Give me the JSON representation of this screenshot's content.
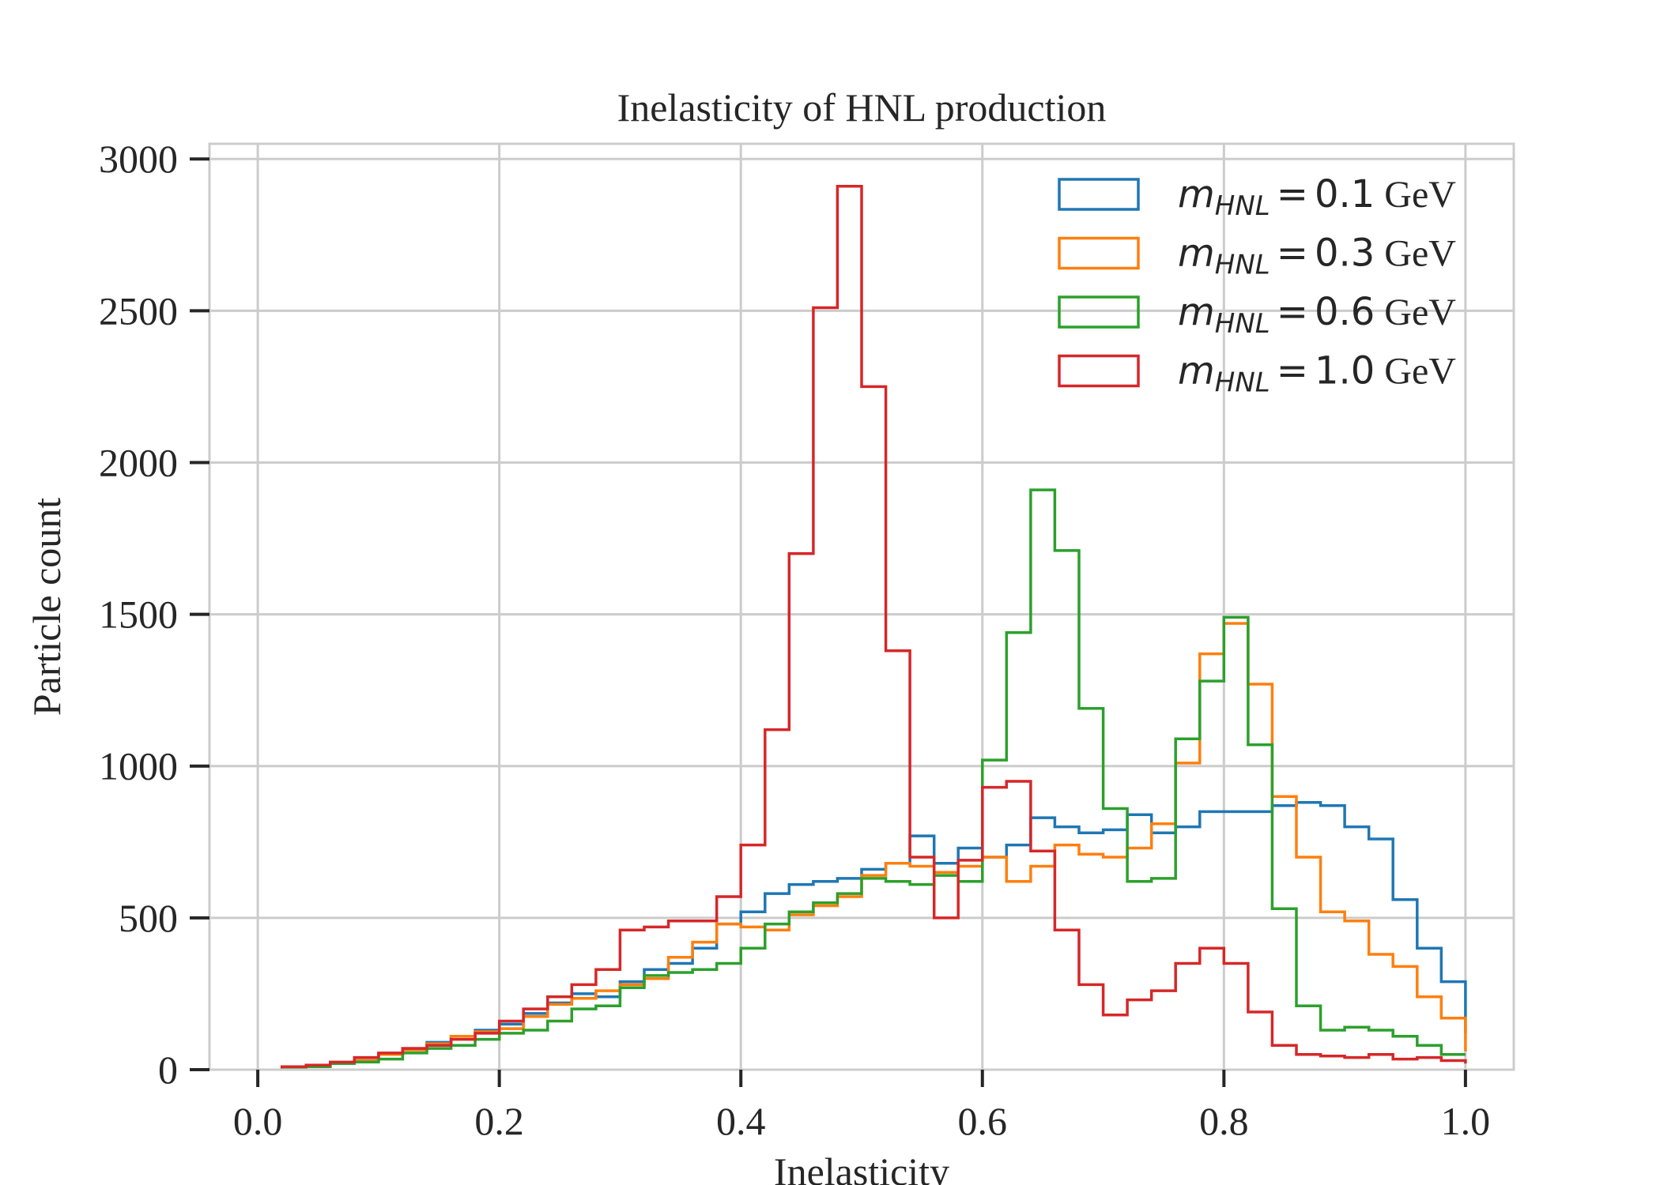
{
  "chart_data": {
    "type": "histogram",
    "title": "Inelasticity of HNL production",
    "xlabel": "Inelasticity",
    "ylabel": "Particle count",
    "xlim": [
      -0.04,
      1.04
    ],
    "ylim": [
      0,
      3050
    ],
    "xticks": [
      0.0,
      0.2,
      0.4,
      0.6,
      0.8,
      1.0
    ],
    "xtick_labels": [
      "0.0",
      "0.2",
      "0.4",
      "0.6",
      "0.8",
      "1.0"
    ],
    "yticks": [
      0,
      500,
      1000,
      1500,
      2000,
      2500,
      3000
    ],
    "ytick_labels": [
      "0",
      "500",
      "1000",
      "1500",
      "2000",
      "2500",
      "3000"
    ],
    "grid": true,
    "legend_position": "top-right",
    "bin_edges": [
      0.02,
      0.04,
      0.06,
      0.08,
      0.1,
      0.12,
      0.14,
      0.16,
      0.18,
      0.2,
      0.22,
      0.24,
      0.26,
      0.28,
      0.3,
      0.32,
      0.34,
      0.36,
      0.38,
      0.4,
      0.42,
      0.44,
      0.46,
      0.48,
      0.5,
      0.52,
      0.54,
      0.56,
      0.58,
      0.6,
      0.62,
      0.64,
      0.66,
      0.68,
      0.7,
      0.72,
      0.74,
      0.76,
      0.78,
      0.8,
      0.82,
      0.84,
      0.86,
      0.88,
      0.9,
      0.92,
      0.94,
      0.96,
      0.98,
      1.0
    ],
    "series": [
      {
        "name": "m_HNL = 0.1 GeV",
        "legend_mass": "0.1",
        "color": "#1f77b4",
        "values": [
          5,
          10,
          20,
          30,
          50,
          70,
          90,
          110,
          130,
          150,
          185,
          220,
          250,
          240,
          290,
          330,
          350,
          400,
          480,
          520,
          580,
          610,
          620,
          630,
          660,
          680,
          770,
          680,
          730,
          700,
          740,
          830,
          800,
          780,
          790,
          840,
          780,
          800,
          850,
          850,
          850,
          870,
          880,
          870,
          800,
          760,
          560,
          400,
          290,
          120
        ]
      },
      {
        "name": "m_HNL = 0.3 GeV",
        "legend_mass": "0.3",
        "color": "#ff7f0e",
        "values": [
          5,
          10,
          20,
          30,
          50,
          65,
          85,
          110,
          125,
          135,
          175,
          215,
          235,
          260,
          280,
          300,
          370,
          420,
          480,
          470,
          460,
          510,
          540,
          570,
          640,
          680,
          670,
          650,
          670,
          700,
          620,
          670,
          740,
          710,
          700,
          730,
          810,
          1010,
          1370,
          1470,
          1270,
          900,
          700,
          520,
          490,
          380,
          340,
          240,
          170,
          60
        ]
      },
      {
        "name": "m_HNL = 0.6 GeV",
        "legend_mass": "0.6",
        "color": "#2ca02c",
        "values": [
          5,
          10,
          20,
          25,
          35,
          55,
          70,
          80,
          100,
          120,
          130,
          160,
          200,
          210,
          270,
          310,
          320,
          330,
          350,
          400,
          480,
          520,
          550,
          580,
          630,
          620,
          610,
          640,
          620,
          1020,
          1440,
          1910,
          1710,
          1190,
          860,
          620,
          630,
          1090,
          1280,
          1490,
          1070,
          530,
          210,
          130,
          140,
          130,
          110,
          80,
          50,
          50
        ]
      },
      {
        "name": "m_HNL = 1.0 GeV",
        "legend_mass": "1.0",
        "color": "#d62728",
        "values": [
          10,
          15,
          25,
          40,
          55,
          70,
          80,
          100,
          120,
          160,
          200,
          240,
          280,
          330,
          460,
          470,
          490,
          490,
          570,
          740,
          1120,
          1700,
          2510,
          2910,
          2250,
          1380,
          700,
          500,
          690,
          930,
          950,
          720,
          460,
          280,
          180,
          230,
          260,
          350,
          400,
          350,
          190,
          80,
          50,
          45,
          40,
          50,
          35,
          40,
          30,
          20
        ]
      }
    ]
  },
  "legend": {
    "prefix": "m",
    "subscript": "HNL",
    "equals": "=",
    "unit": "GeV"
  }
}
